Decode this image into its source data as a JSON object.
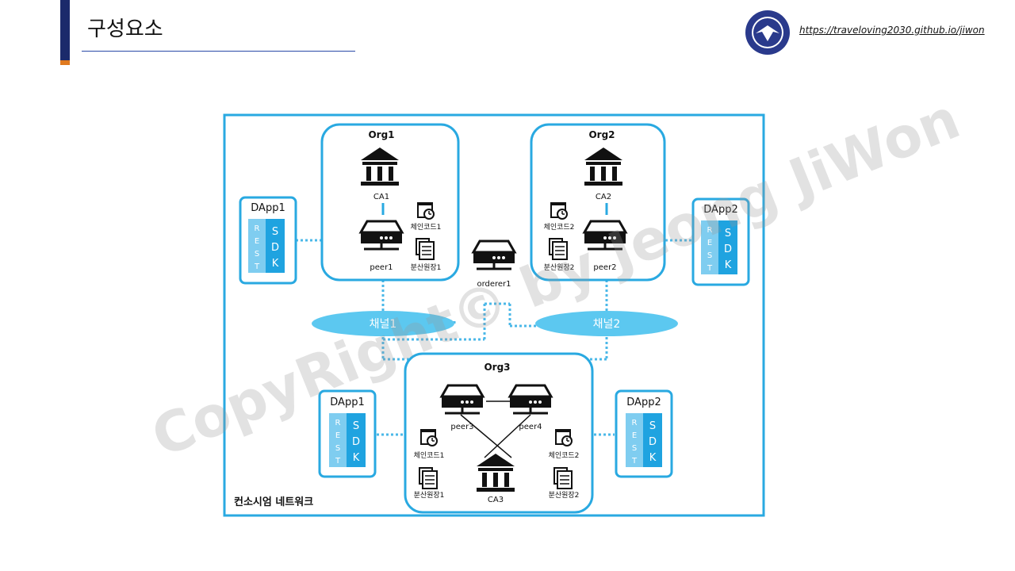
{
  "header": {
    "title": "구성요소",
    "link": "https://traveloving2030.github.io/jiwon"
  },
  "diagram": {
    "network_label": "컨소시엄 네트워크",
    "org1": {
      "title": "Org1",
      "ca": "CA1",
      "peer": "peer1",
      "chaincode": "체인코드1",
      "ledger": "분산원장1"
    },
    "org2": {
      "title": "Org2",
      "ca": "CA2",
      "peer": "peer2",
      "chaincode": "체인코드2",
      "ledger": "분산원장2"
    },
    "org3": {
      "title": "Org3",
      "ca": "CA3",
      "peer_a": "peer3",
      "peer_b": "peer4",
      "chaincode_a": "체인코드1",
      "ledger_a": "분산원장1",
      "chaincode_b": "체인코드2",
      "ledger_b": "분산원장2"
    },
    "orderer": "orderer1",
    "channel1": "채널1",
    "channel2": "채널2",
    "dapp1": "DApp1",
    "dapp2": "DApp2",
    "rest": [
      "R",
      "E",
      "S",
      "T"
    ],
    "sdk": [
      "S",
      "D",
      "K"
    ]
  },
  "watermark": "CopyRight© by Jeong JiWon",
  "colors": {
    "accent": "#1b2a6b",
    "accent_tip": "#e07a1f",
    "frame": "#29a9e1",
    "channel": "#5cc8f0",
    "sdk": "#1fa3e0",
    "rest": "#7fcdf0"
  }
}
